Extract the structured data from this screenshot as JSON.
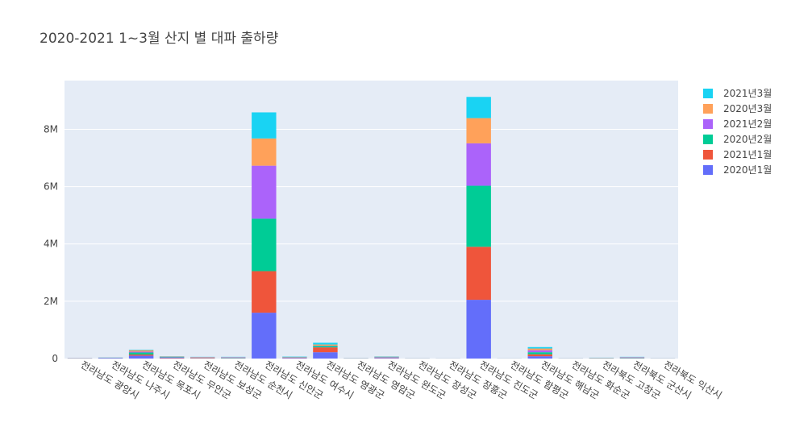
{
  "chart_data": {
    "type": "bar",
    "stacked": true,
    "title": "2020-2021 1~3월 산지 별 대파 출하량",
    "xlabel": "",
    "ylabel": "",
    "ylim": [
      0,
      9700000
    ],
    "yticks": [
      0,
      2000000,
      4000000,
      6000000,
      8000000
    ],
    "ytick_labels": [
      "0",
      "2M",
      "4M",
      "6M",
      "8M"
    ],
    "grid": true,
    "legend_position": "right",
    "categories": [
      "전라남도 광양시",
      "전라남도 나주시",
      "전라남도 목포시",
      "전라남도 무안군",
      "전라남도 보성군",
      "전라남도 순천시",
      "전라남도 신안군",
      "전라남도 여수시",
      "전라남도 영광군",
      "전라남도 영암군",
      "전라남도 완도군",
      "전라남도 장성군",
      "전라남도 장흥군",
      "전라남도 진도군",
      "전라남도 함평군",
      "전라남도 해남군",
      "전라남도 화순군",
      "전라북도 고창군",
      "전라북도 군산시",
      "전라북도 익산시"
    ],
    "series": [
      {
        "name": "2020년1월",
        "color": "#636efa",
        "values": [
          5000,
          15000,
          100000,
          15000,
          10000,
          10000,
          1600000,
          20000,
          220000,
          3000,
          20000,
          2000,
          1000,
          2050000,
          1000,
          80000,
          2000,
          5000,
          10000,
          2000
        ]
      },
      {
        "name": "2021년1월",
        "color": "#ef553b",
        "values": [
          5000,
          5000,
          40000,
          15000,
          15000,
          10000,
          1450000,
          10000,
          170000,
          3000,
          15000,
          2000,
          1000,
          1850000,
          1000,
          70000,
          2000,
          5000,
          10000,
          2000
        ]
      },
      {
        "name": "2020년2월",
        "color": "#00cc96",
        "values": [
          3000,
          5000,
          70000,
          15000,
          10000,
          10000,
          1830000,
          10000,
          50000,
          3000,
          10000,
          2000,
          1000,
          2130000,
          1000,
          70000,
          2000,
          5000,
          10000,
          2000
        ]
      },
      {
        "name": "2021년2월",
        "color": "#ab63fa",
        "values": [
          3000,
          5000,
          30000,
          15000,
          10000,
          10000,
          1850000,
          10000,
          10000,
          3000,
          10000,
          2000,
          1000,
          1480000,
          1000,
          70000,
          2000,
          5000,
          10000,
          2000
        ]
      },
      {
        "name": "2020년3월",
        "color": "#ffa15a",
        "values": [
          2000,
          5000,
          50000,
          10000,
          10000,
          10000,
          950000,
          10000,
          40000,
          3000,
          10000,
          2000,
          1000,
          880000,
          1000,
          60000,
          2000,
          5000,
          10000,
          2000
        ]
      },
      {
        "name": "2021년3월",
        "color": "#19d3f3",
        "values": [
          2000,
          5000,
          20000,
          10000,
          5000,
          10000,
          910000,
          10000,
          60000,
          3000,
          10000,
          2000,
          1000,
          740000,
          1000,
          50000,
          2000,
          5000,
          10000,
          2000
        ]
      }
    ]
  }
}
